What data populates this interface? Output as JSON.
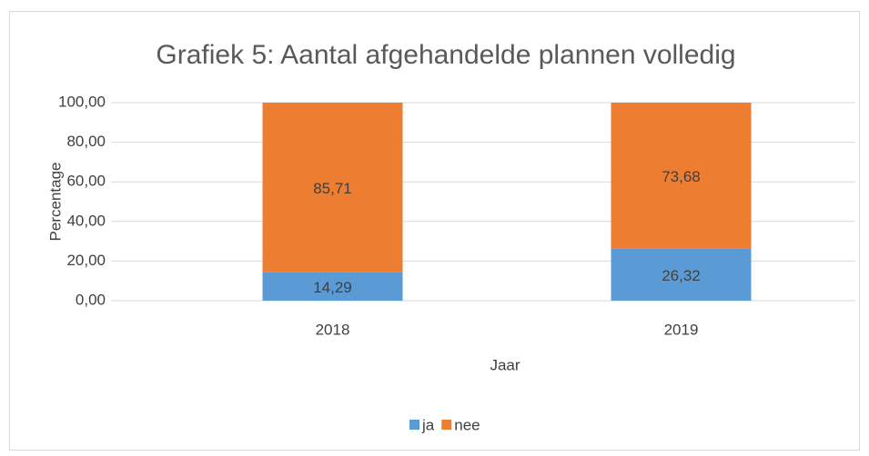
{
  "chart_data": {
    "type": "stacked_bar",
    "title": "Grafiek 5: Aantal afgehandelde plannen volledig",
    "x_label": "Jaar",
    "y_label": "Percentage",
    "categories": [
      "2018",
      "2019"
    ],
    "series": [
      {
        "name": "ja",
        "color": "#5b9bd5",
        "values": [
          14.29,
          26.32
        ],
        "value_labels": [
          "14,29",
          "26,32"
        ]
      },
      {
        "name": "nee",
        "color": "#ed7d31",
        "values": [
          85.71,
          73.68
        ],
        "value_labels": [
          "85,71",
          "73,68"
        ]
      }
    ],
    "ylim": [
      0,
      100
    ],
    "yticks": [
      {
        "value": 0,
        "label": "0,00"
      },
      {
        "value": 20,
        "label": "20,00"
      },
      {
        "value": 40,
        "label": "40,00"
      },
      {
        "value": 60,
        "label": "60,00"
      },
      {
        "value": 80,
        "label": "80,00"
      },
      {
        "value": 100,
        "label": "100,00"
      }
    ],
    "grid": true,
    "legend": "bottom"
  }
}
